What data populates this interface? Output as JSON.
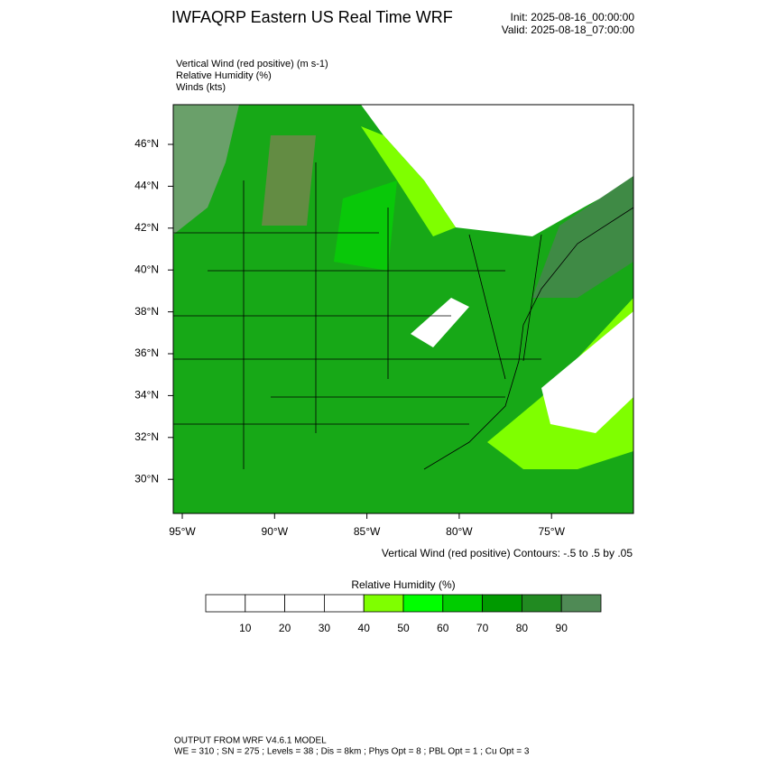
{
  "header": {
    "title": "IWFAQRP Eastern US Real Time WRF",
    "init": "Init: 2025-08-16_00:00:00",
    "valid": "Valid: 2025-08-18_07:00:00"
  },
  "legend_lines": [
    "Vertical Wind (red positive)   (m s-1)",
    "Relative Humidity   (%)",
    "Winds   (kts)"
  ],
  "map": {
    "lat_labels": [
      "46°N",
      "44°N",
      "42°N",
      "40°N",
      "38°N",
      "36°N",
      "34°N",
      "32°N",
      "30°N"
    ],
    "lon_labels": [
      "95°W",
      "90°W",
      "85°W",
      "80°W",
      "75°W"
    ],
    "contour_note": "Vertical Wind (red positive) Contours: -.5 to .5 by .05"
  },
  "colorbar": {
    "title": "Relative Humidity  (%)",
    "ticks": [
      10,
      20,
      30,
      40,
      50,
      60,
      70,
      80,
      90
    ],
    "colors": [
      "#ffffff",
      "#ffffff",
      "#ffffff",
      "#ffffff",
      "#7fff00",
      "#00ff00",
      "#00cd00",
      "#009a00",
      "#218a21",
      "#4f8a55"
    ]
  },
  "footer": [
    "OUTPUT FROM WRF V4.6.1 MODEL",
    "WE = 310 ; SN = 275 ; Levels = 38 ; Dis = 8km ; Phys Opt = 8 ; PBL Opt = 1 ; Cu Opt = 3"
  ]
}
